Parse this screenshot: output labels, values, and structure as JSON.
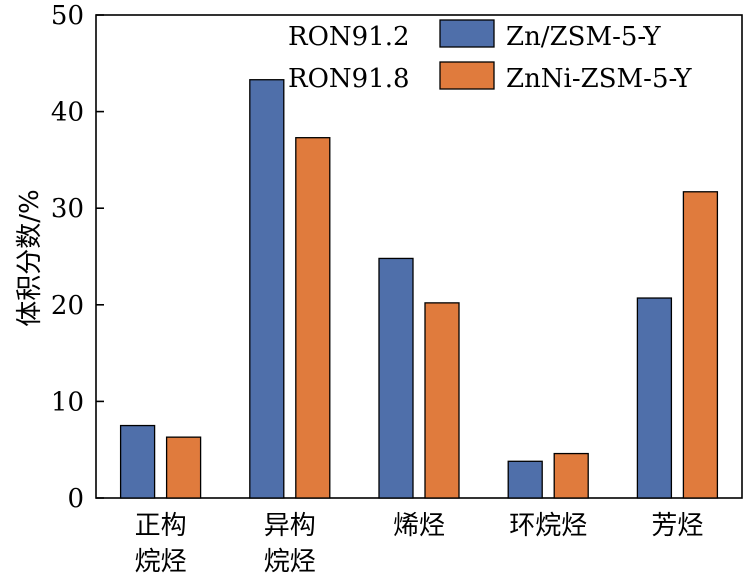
{
  "chart_data": {
    "type": "bar",
    "title": "",
    "xlabel": "",
    "ylabel": "体积分数/%",
    "ylim": [
      0,
      50
    ],
    "yticks": [
      "0",
      "10",
      "20",
      "30",
      "40",
      "50"
    ],
    "categories": [
      [
        "正构",
        "烷烃"
      ],
      [
        "异构",
        "烷烃"
      ],
      [
        "烯烃"
      ],
      [
        "环烷烃"
      ],
      [
        "芳烃"
      ]
    ],
    "series": [
      {
        "name": "Zn/ZSM-5-Y",
        "color": "#4f6faa",
        "values": [
          7.5,
          43.3,
          24.8,
          3.8,
          20.7
        ]
      },
      {
        "name": "ZnNi-ZSM-5-Y",
        "color": "#e07b3d",
        "values": [
          6.3,
          37.3,
          20.2,
          4.6,
          31.7
        ]
      }
    ],
    "annotations": [
      "RON91.2",
      "RON91.8"
    ],
    "legend_position": "top-right",
    "grid": false
  }
}
